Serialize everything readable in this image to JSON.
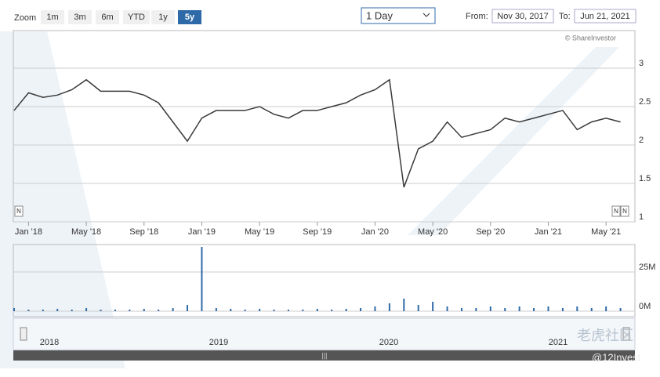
{
  "controls": {
    "zoom_label": "Zoom",
    "zoom_buttons": [
      "1m",
      "3m",
      "6m",
      "YTD",
      "1y",
      "5y"
    ],
    "active": "5y",
    "interval": "1 Day",
    "from_label": "From:",
    "from": "Nov 30, 2017",
    "to_label": "To:",
    "to": "Jun 21, 2021"
  },
  "credit": "© ShareInvestor",
  "flags": [
    "N",
    "N",
    "N"
  ],
  "navigator": {
    "years": [
      "2018",
      "2019",
      "2020",
      "2021"
    ]
  },
  "watermark": [
    "老虎社区",
    "@12Invest"
  ],
  "chart_data": [
    {
      "type": "line",
      "color": "#3a3a3a",
      "x": [
        "2017-12",
        "2018-01",
        "2018-02",
        "2018-03",
        "2018-04",
        "2018-05",
        "2018-06",
        "2018-07",
        "2018-08",
        "2018-09",
        "2018-10",
        "2018-11",
        "2018-12",
        "2019-01",
        "2019-02",
        "2019-03",
        "2019-04",
        "2019-05",
        "2019-06",
        "2019-07",
        "2019-08",
        "2019-09",
        "2019-10",
        "2019-11",
        "2019-12",
        "2020-01",
        "2020-02",
        "2020-03",
        "2020-04",
        "2020-05",
        "2020-06",
        "2020-07",
        "2020-08",
        "2020-09",
        "2020-10",
        "2020-11",
        "2020-12",
        "2021-01",
        "2021-02",
        "2021-03",
        "2021-04",
        "2021-05",
        "2021-06"
      ],
      "values": [
        2.45,
        2.68,
        2.62,
        2.65,
        2.72,
        2.85,
        2.7,
        2.7,
        2.7,
        2.65,
        2.55,
        2.3,
        2.05,
        2.35,
        2.45,
        2.45,
        2.45,
        2.5,
        2.4,
        2.35,
        2.45,
        2.45,
        2.5,
        2.55,
        2.65,
        2.72,
        2.85,
        1.45,
        1.95,
        2.05,
        2.3,
        2.1,
        2.15,
        2.2,
        2.35,
        2.3,
        2.35,
        2.4,
        2.45,
        2.2,
        2.3,
        2.35,
        2.3
      ],
      "xlim": [
        "2017-12",
        "2021-07"
      ],
      "xticks": [
        {
          "value": "2018-01",
          "label": "Jan '18"
        },
        {
          "value": "2018-05",
          "label": "May '18"
        },
        {
          "value": "2018-09",
          "label": "Sep '18"
        },
        {
          "value": "2019-01",
          "label": "Jan '19"
        },
        {
          "value": "2019-05",
          "label": "May '19"
        },
        {
          "value": "2019-09",
          "label": "Sep '19"
        },
        {
          "value": "2020-01",
          "label": "Jan '20"
        },
        {
          "value": "2020-05",
          "label": "May '20"
        },
        {
          "value": "2020-09",
          "label": "Sep '20"
        },
        {
          "value": "2021-01",
          "label": "Jan '21"
        },
        {
          "value": "2021-05",
          "label": "May '21"
        }
      ],
      "ylim": [
        1,
        3.48
      ],
      "yticks": [
        1,
        1.5,
        2,
        2.5,
        3
      ],
      "grid": true
    },
    {
      "type": "bar",
      "color": "#2f6aa8",
      "x": [
        "2017-12",
        "2018-01",
        "2018-02",
        "2018-03",
        "2018-04",
        "2018-05",
        "2018-06",
        "2018-07",
        "2018-08",
        "2018-09",
        "2018-10",
        "2018-11",
        "2018-12",
        "2019-01",
        "2019-02",
        "2019-03",
        "2019-04",
        "2019-05",
        "2019-06",
        "2019-07",
        "2019-08",
        "2019-09",
        "2019-10",
        "2019-11",
        "2019-12",
        "2020-01",
        "2020-02",
        "2020-03",
        "2020-04",
        "2020-05",
        "2020-06",
        "2020-07",
        "2020-08",
        "2020-09",
        "2020-10",
        "2020-11",
        "2020-12",
        "2021-01",
        "2021-02",
        "2021-03",
        "2021-04",
        "2021-05",
        "2021-06"
      ],
      "values": [
        2,
        1,
        1,
        1.5,
        1,
        2,
        1,
        1,
        1,
        1.5,
        1,
        2,
        4,
        41,
        2,
        1.5,
        1,
        1.5,
        1,
        1,
        1,
        1.5,
        1,
        1.5,
        2,
        3,
        5,
        8,
        4,
        6,
        3,
        2,
        2,
        3,
        2,
        3,
        2,
        3,
        2,
        3,
        2,
        3,
        2
      ],
      "xlim": [
        "2017-12",
        "2021-07"
      ],
      "ylim": [
        0,
        42
      ],
      "yticks": [
        {
          "value": 0,
          "label": "0M"
        },
        {
          "value": 25,
          "label": "25M"
        }
      ],
      "grid": true
    }
  ]
}
